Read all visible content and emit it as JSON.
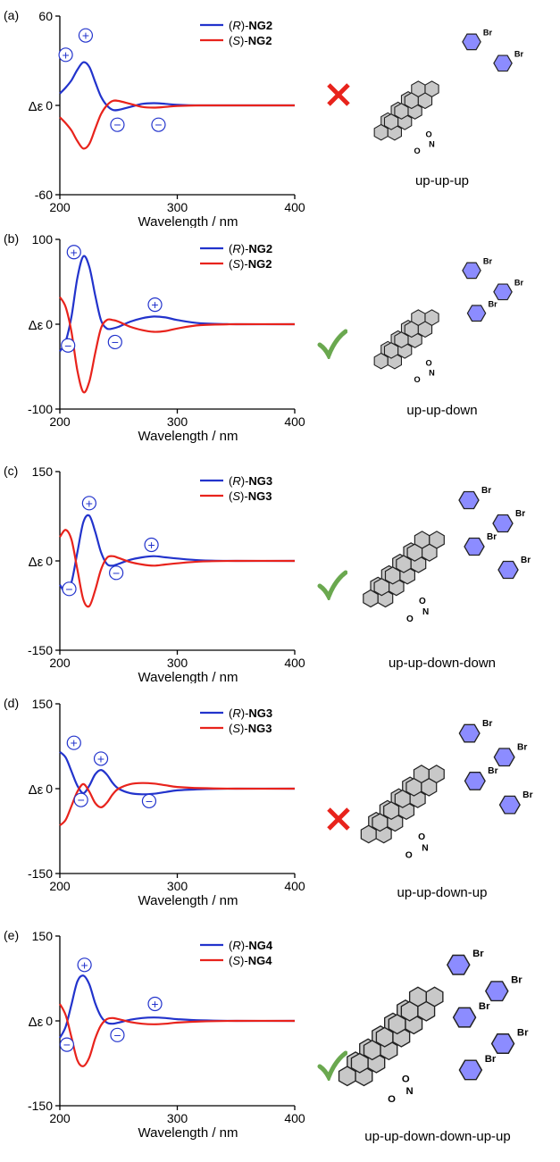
{
  "panels": [
    {
      "letter": "(a)",
      "ylabel": "Δε",
      "xlabel": "Wavelength / nm",
      "legend": [
        {
          "prefix": "(",
          "stereo": "R",
          "mid": ")-",
          "compound": "NG2",
          "color": "#2233cc"
        },
        {
          "prefix": "(",
          "stereo": "S",
          "mid": ")-",
          "compound": "NG2",
          "color": "#e8231c"
        }
      ],
      "conformation": "up-up-up",
      "verdict": "cross",
      "signs": [
        {
          "sign": "+",
          "x": 205,
          "y": 34
        },
        {
          "sign": "+",
          "x": 222,
          "y": 47
        },
        {
          "sign": "−",
          "x": 249,
          "y": -13
        },
        {
          "sign": "−",
          "x": 284,
          "y": -13
        }
      ]
    },
    {
      "letter": "(b)",
      "ylabel": "Δε",
      "xlabel": "Wavelength / nm",
      "legend": [
        {
          "prefix": "(",
          "stereo": "R",
          "mid": ")-",
          "compound": "NG2",
          "color": "#2233cc"
        },
        {
          "prefix": "(",
          "stereo": "S",
          "mid": ")-",
          "compound": "NG2",
          "color": "#e8231c"
        }
      ],
      "conformation": "up-up-down",
      "verdict": "check",
      "signs": [
        {
          "sign": "+",
          "x": 212,
          "y": 85
        },
        {
          "sign": "−",
          "x": 207,
          "y": -25
        },
        {
          "sign": "−",
          "x": 247,
          "y": -21
        },
        {
          "sign": "+",
          "x": 281,
          "y": 23
        }
      ]
    },
    {
      "letter": "(c)",
      "ylabel": "Δε",
      "xlabel": "Wavelength / nm",
      "legend": [
        {
          "prefix": "(",
          "stereo": "R",
          "mid": ")-",
          "compound": "NG3",
          "color": "#2233cc"
        },
        {
          "prefix": "(",
          "stereo": "S",
          "mid": ")-",
          "compound": "NG3",
          "color": "#e8231c"
        }
      ],
      "conformation": "up-up-down-down",
      "verdict": "check",
      "signs": [
        {
          "sign": "+",
          "x": 225,
          "y": 97
        },
        {
          "sign": "−",
          "x": 208,
          "y": -47
        },
        {
          "sign": "−",
          "x": 248,
          "y": -20
        },
        {
          "sign": "+",
          "x": 278,
          "y": 27
        }
      ]
    },
    {
      "letter": "(d)",
      "ylabel": "Δε",
      "xlabel": "Wavelength / nm",
      "legend": [
        {
          "prefix": "(",
          "stereo": "R",
          "mid": ")-",
          "compound": "NG3",
          "color": "#2233cc"
        },
        {
          "prefix": "(",
          "stereo": "S",
          "mid": ")-",
          "compound": "NG3",
          "color": "#e8231c"
        }
      ],
      "conformation": "up-up-down-up",
      "verdict": "cross",
      "signs": [
        {
          "sign": "+",
          "x": 212,
          "y": 81
        },
        {
          "sign": "+",
          "x": 235,
          "y": 53
        },
        {
          "sign": "−",
          "x": 218,
          "y": -20
        },
        {
          "sign": "−",
          "x": 276,
          "y": -22
        }
      ]
    },
    {
      "letter": "(e)",
      "ylabel": "Δε",
      "xlabel": "Wavelength / nm",
      "legend": [
        {
          "prefix": "(",
          "stereo": "R",
          "mid": ")-",
          "compound": "NG4",
          "color": "#2233cc"
        },
        {
          "prefix": "(",
          "stereo": "S",
          "mid": ")-",
          "compound": "NG4",
          "color": "#e8231c"
        }
      ],
      "conformation": "up-up-down-down-up-up",
      "verdict": "check",
      "signs": [
        {
          "sign": "+",
          "x": 221,
          "y": 99
        },
        {
          "sign": "−",
          "x": 206,
          "y": -42
        },
        {
          "sign": "−",
          "x": 249,
          "y": -25
        },
        {
          "sign": "+",
          "x": 281,
          "y": 30
        }
      ]
    }
  ],
  "colors": {
    "R": "#2233cc",
    "S": "#e8231c",
    "check": "#6aa84f",
    "cross": "#e8231c",
    "ring": "#8c8cff"
  },
  "chart_data": [
    {
      "type": "line",
      "x": [
        200,
        205,
        210,
        215,
        220,
        225,
        230,
        235,
        240,
        245,
        250,
        260,
        270,
        280,
        290,
        300,
        320,
        350,
        400
      ],
      "xlim": [
        200,
        400
      ],
      "ylim": [
        -60,
        60
      ],
      "xticks": [
        200,
        300,
        400
      ],
      "yticks": [
        -60,
        0,
        60
      ],
      "xlabel": "Wavelength / nm",
      "ylabel": "Δε",
      "series": [
        {
          "name": "(R)-NG2",
          "values": [
            8,
            12,
            17,
            24,
            29,
            26,
            16,
            6,
            0,
            -3,
            -3,
            -1,
            1,
            1.5,
            1,
            0.4,
            0,
            0,
            0
          ]
        },
        {
          "name": "(S)-NG2",
          "values": [
            -8,
            -12,
            -17,
            -24,
            -29,
            -26,
            -16,
            -6,
            0,
            3,
            3,
            1,
            -1,
            -1.5,
            -1,
            -0.4,
            0,
            0,
            0
          ]
        }
      ]
    },
    {
      "type": "line",
      "x": [
        200,
        205,
        210,
        215,
        220,
        225,
        230,
        235,
        240,
        245,
        250,
        260,
        270,
        280,
        290,
        300,
        320,
        350,
        400
      ],
      "xlim": [
        200,
        400
      ],
      "ylim": [
        -100,
        100
      ],
      "xticks": [
        200,
        300,
        400
      ],
      "yticks": [
        -100,
        0,
        100
      ],
      "xlabel": "Wavelength / nm",
      "ylabel": "Δε",
      "series": [
        {
          "name": "(R)-NG2",
          "values": [
            -32,
            -20,
            10,
            55,
            80,
            68,
            35,
            5,
            -5,
            -5,
            -3,
            3,
            7,
            9,
            8,
            5,
            1,
            0,
            0
          ]
        },
        {
          "name": "(S)-NG2",
          "values": [
            32,
            20,
            -10,
            -55,
            -80,
            -68,
            -35,
            -5,
            5,
            5,
            3,
            -3,
            -7,
            -9,
            -8,
            -5,
            -1,
            0,
            0
          ]
        }
      ]
    },
    {
      "type": "line",
      "x": [
        200,
        205,
        210,
        215,
        220,
        225,
        230,
        235,
        240,
        245,
        250,
        260,
        270,
        280,
        290,
        300,
        320,
        350,
        400
      ],
      "xlim": [
        200,
        400
      ],
      "ylim": [
        -150,
        150
      ],
      "xticks": [
        200,
        300,
        400
      ],
      "yticks": [
        -150,
        0,
        150
      ],
      "xlabel": "Wavelength / nm",
      "ylabel": "Δε",
      "series": [
        {
          "name": "(R)-NG3",
          "values": [
            -40,
            -52,
            -35,
            15,
            65,
            76,
            50,
            15,
            -5,
            -8,
            -5,
            2,
            6,
            8,
            6,
            4,
            1,
            0,
            0
          ]
        },
        {
          "name": "(S)-NG3",
          "values": [
            40,
            52,
            35,
            -15,
            -65,
            -76,
            -50,
            -15,
            5,
            8,
            5,
            -2,
            -6,
            -8,
            -6,
            -4,
            -1,
            0,
            0
          ]
        }
      ]
    },
    {
      "type": "line",
      "x": [
        200,
        205,
        210,
        215,
        220,
        225,
        230,
        235,
        240,
        245,
        250,
        260,
        270,
        280,
        290,
        300,
        320,
        350,
        400
      ],
      "xlim": [
        200,
        400
      ],
      "ylim": [
        -150,
        150
      ],
      "xticks": [
        200,
        300,
        400
      ],
      "yticks": [
        -150,
        0,
        150
      ],
      "xlabel": "Wavelength / nm",
      "ylabel": "Δε",
      "series": [
        {
          "name": "(R)-NG3",
          "values": [
            65,
            55,
            30,
            5,
            -8,
            5,
            25,
            33,
            25,
            10,
            0,
            -8,
            -10,
            -9,
            -6,
            -3,
            -1,
            0,
            0
          ]
        },
        {
          "name": "(S)-NG3",
          "values": [
            -65,
            -55,
            -30,
            -5,
            8,
            -5,
            -25,
            -33,
            -25,
            -10,
            0,
            8,
            10,
            9,
            6,
            3,
            1,
            0,
            0
          ]
        }
      ]
    },
    {
      "type": "line",
      "x": [
        200,
        205,
        210,
        215,
        220,
        225,
        230,
        235,
        240,
        245,
        250,
        260,
        270,
        280,
        290,
        300,
        320,
        350,
        400
      ],
      "xlim": [
        200,
        400
      ],
      "ylim": [
        -150,
        150
      ],
      "xticks": [
        200,
        300,
        400
      ],
      "yticks": [
        -150,
        0,
        150
      ],
      "xlabel": "Wavelength / nm",
      "ylabel": "Δε",
      "series": [
        {
          "name": "(R)-NG4",
          "values": [
            -30,
            -10,
            30,
            70,
            80,
            65,
            32,
            8,
            -3,
            -5,
            -3,
            2,
            5,
            6,
            5,
            3,
            1,
            0,
            0
          ]
        },
        {
          "name": "(S)-NG4",
          "values": [
            30,
            10,
            -30,
            -70,
            -80,
            -65,
            -32,
            -8,
            3,
            5,
            3,
            -2,
            -5,
            -6,
            -5,
            -3,
            -1,
            0,
            0
          ]
        }
      ]
    }
  ]
}
